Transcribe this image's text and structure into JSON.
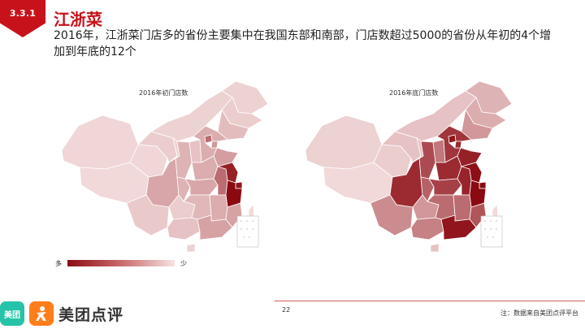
{
  "section_number": "3.3.1",
  "title": "江浙菜",
  "subtitle": "2016年，江浙菜门店多的省份主要集中在我国东部和南部，门店数超过5000的省份从年初的4个增加到年底的12个",
  "maps": [
    {
      "title": "2016年初门店数",
      "regions": [
        {
          "name": "黑龙江",
          "level": 0.08
        },
        {
          "name": "吉林",
          "level": 0.1
        },
        {
          "name": "辽宁",
          "level": 0.18
        },
        {
          "name": "内蒙古",
          "level": 0.08
        },
        {
          "name": "新疆",
          "level": 0.06
        },
        {
          "name": "西藏",
          "level": 0.05
        },
        {
          "name": "青海",
          "level": 0.06
        },
        {
          "name": "甘肃",
          "level": 0.1
        },
        {
          "name": "宁夏",
          "level": 0.08
        },
        {
          "name": "陕西",
          "level": 0.22
        },
        {
          "name": "山西",
          "level": 0.15
        },
        {
          "name": "河北",
          "level": 0.25
        },
        {
          "name": "北京",
          "level": 0.55
        },
        {
          "name": "天津",
          "level": 0.35
        },
        {
          "name": "山东",
          "level": 0.32
        },
        {
          "name": "河南",
          "level": 0.25
        },
        {
          "name": "四川",
          "level": 0.28
        },
        {
          "name": "重庆",
          "level": 0.22
        },
        {
          "name": "湖北",
          "level": 0.28
        },
        {
          "name": "安徽",
          "level": 0.55
        },
        {
          "name": "江苏",
          "level": 0.9
        },
        {
          "name": "上海",
          "level": 0.95
        },
        {
          "name": "浙江",
          "level": 1.0
        },
        {
          "name": "云南",
          "level": 0.12
        },
        {
          "name": "贵州",
          "level": 0.1
        },
        {
          "name": "湖南",
          "level": 0.2
        },
        {
          "name": "江西",
          "level": 0.25
        },
        {
          "name": "福建",
          "level": 0.3
        },
        {
          "name": "广西",
          "level": 0.15
        },
        {
          "name": "广东",
          "level": 0.3
        },
        {
          "name": "海南",
          "level": 0.08
        },
        {
          "name": "台湾",
          "level": 0.04
        }
      ]
    },
    {
      "title": "2016年底门店数",
      "regions": [
        {
          "name": "黑龙江",
          "level": 0.22
        },
        {
          "name": "吉林",
          "level": 0.25
        },
        {
          "name": "辽宁",
          "level": 0.35
        },
        {
          "name": "内蒙古",
          "level": 0.15
        },
        {
          "name": "新疆",
          "level": 0.08
        },
        {
          "name": "西藏",
          "level": 0.05
        },
        {
          "name": "青海",
          "level": 0.1
        },
        {
          "name": "甘肃",
          "level": 0.15
        },
        {
          "name": "宁夏",
          "level": 0.15
        },
        {
          "name": "陕西",
          "level": 0.7
        },
        {
          "name": "山西",
          "level": 0.5
        },
        {
          "name": "河北",
          "level": 0.8
        },
        {
          "name": "北京",
          "level": 0.95
        },
        {
          "name": "天津",
          "level": 0.85
        },
        {
          "name": "山东",
          "level": 0.9
        },
        {
          "name": "河南",
          "level": 0.85
        },
        {
          "name": "四川",
          "level": 0.85
        },
        {
          "name": "重庆",
          "level": 0.6
        },
        {
          "name": "湖北",
          "level": 0.75
        },
        {
          "name": "安徽",
          "level": 0.88
        },
        {
          "name": "江苏",
          "level": 0.98
        },
        {
          "name": "上海",
          "level": 1.0
        },
        {
          "name": "浙江",
          "level": 1.0
        },
        {
          "name": "云南",
          "level": 0.4
        },
        {
          "name": "贵州",
          "level": 0.35
        },
        {
          "name": "湖南",
          "level": 0.55
        },
        {
          "name": "江西",
          "level": 0.55
        },
        {
          "name": "福建",
          "level": 0.65
        },
        {
          "name": "广西",
          "level": 0.45
        },
        {
          "name": "广东",
          "level": 0.95
        },
        {
          "name": "海南",
          "level": 0.15
        },
        {
          "name": "台湾",
          "level": 0.04
        }
      ]
    }
  ],
  "legend": {
    "more": "多",
    "less": "少",
    "color_dark": "#8b0a12",
    "color_light": "#f6e3e3"
  },
  "page_number": "22",
  "note": "注：数据来自美团点评平台",
  "logo": {
    "small_text": "美团",
    "name": "美团点评"
  },
  "colors": {
    "accent": "#c8121b",
    "map_light": "#f6e3e3",
    "map_dark": "#8b0a12",
    "logo_teal": "#27c3a8",
    "logo_orange": "#ff7d1a"
  }
}
